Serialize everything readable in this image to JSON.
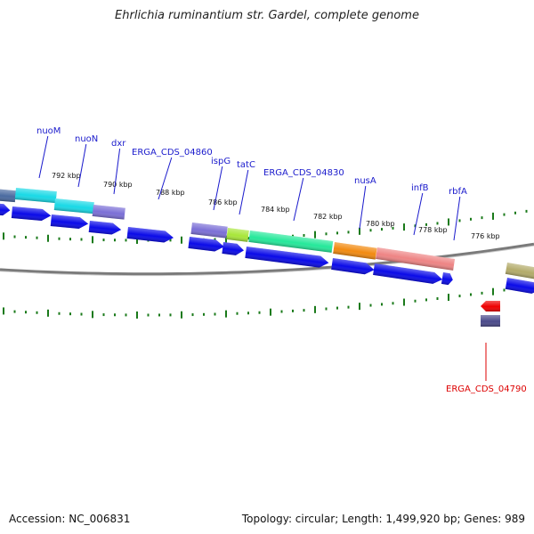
{
  "title": "Ehrlichia ruminantium str. Gardel, complete genome",
  "footer": {
    "accession": "Accession: NC_006831",
    "summary": "Topology: circular; Length: 1,499,920 bp; Genes: 989"
  },
  "colors": {
    "background": "#ffffff",
    "backbone": "#7a7a7a",
    "tick": "#1a7a1a",
    "cds": "#0a0ae8",
    "label_default": "#1a1acc",
    "label_highlight": "#dd0000"
  },
  "scale_labels": [
    "792 kbp",
    "790 kbp",
    "788 kbp",
    "786 kbp",
    "784 kbp",
    "782 kbp",
    "780 kbp",
    "778 kbp",
    "776 kbp"
  ],
  "gene_labels": [
    {
      "text": "nuoM",
      "color": "#1a1acc"
    },
    {
      "text": "nuoN",
      "color": "#1a1acc"
    },
    {
      "text": "dxr",
      "color": "#1a1acc"
    },
    {
      "text": "ERGA_CDS_04860",
      "color": "#1a1acc"
    },
    {
      "text": "ispG",
      "color": "#1a1acc"
    },
    {
      "text": "tatC",
      "color": "#1a1acc"
    },
    {
      "text": "ERGA_CDS_04830",
      "color": "#1a1acc"
    },
    {
      "text": "nusA",
      "color": "#1a1acc"
    },
    {
      "text": "infB",
      "color": "#1a1acc"
    },
    {
      "text": "rbfA",
      "color": "#1a1acc"
    },
    {
      "text": "ERGA_CDS_04790",
      "color": "#dd0000"
    }
  ],
  "cog_blocks": [
    {
      "name": "cog-block-left-edge",
      "color": "#4a6aa0"
    },
    {
      "name": "cog-block-nuoM",
      "color": "#19d9e6"
    },
    {
      "name": "cog-block-nuoN",
      "color": "#19d9e6"
    },
    {
      "name": "cog-block-dxr",
      "color": "#7b6fd6"
    },
    {
      "name": "cog-block-ispG",
      "color": "#7b6fd6"
    },
    {
      "name": "cog-block-tatC",
      "color": "#a8e63a"
    },
    {
      "name": "cog-block-04830",
      "color": "#25e89a"
    },
    {
      "name": "cog-block-nusA",
      "color": "#f28a10"
    },
    {
      "name": "cog-block-infB",
      "color": "#ee8484"
    },
    {
      "name": "cog-block-right-edge",
      "color": "#b3ab6a"
    },
    {
      "name": "cog-block-04790",
      "color": "#4b4a8a"
    }
  ]
}
